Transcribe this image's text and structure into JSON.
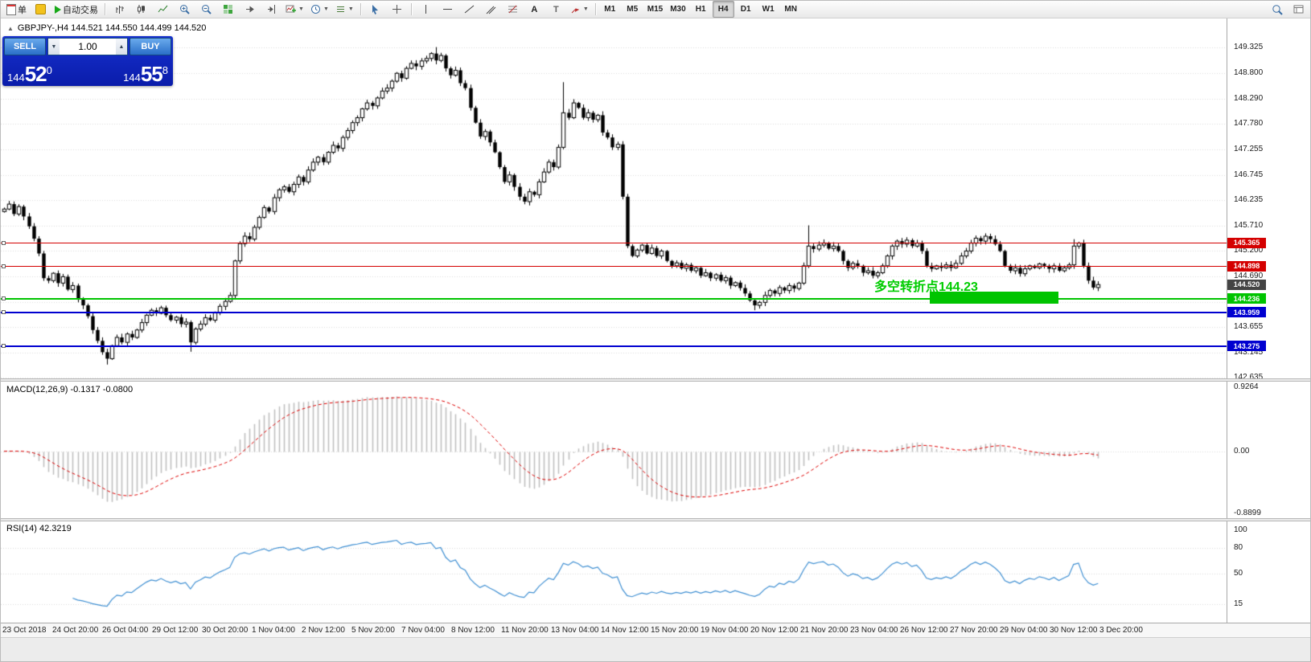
{
  "toolbar": {
    "order_label": "单",
    "autotrading_label": "自动交易",
    "text_tool_label": "A",
    "label_tool_label": "T",
    "timeframes": [
      "M1",
      "M5",
      "M15",
      "M30",
      "H1",
      "H4",
      "D1",
      "W1",
      "MN"
    ],
    "active_timeframe": "H4",
    "icons": [
      "new-order-icon",
      "metaeditor-icon",
      "autotrading-play-icon",
      "bar-chart-icon",
      "candlestick-chart-icon",
      "line-chart-icon",
      "zoom-in-icon",
      "zoom-out-icon",
      "tile-windows-icon",
      "new-chart-icon",
      "chart-profiles-icon",
      "indicator-list-icon",
      "cursor-icon",
      "crosshair-icon",
      "vertical-line-icon",
      "horizontal-line-icon",
      "trendline-icon",
      "equidistant-channel-icon",
      "fibonacci-icon",
      "text-icon",
      "text-label-icon",
      "arrow-shapes-icon",
      "search-icon",
      "data-window-icon"
    ]
  },
  "chart": {
    "info_line": "GBPJPY-,H4  144.521 144.550 144.499 144.520",
    "symbol": "GBPJPY-",
    "timeframe": "H4"
  },
  "trade_panel": {
    "sell_label": "SELL",
    "buy_label": "BUY",
    "lot_size": "1.00",
    "sell_price": {
      "prefix": "144",
      "big": "52",
      "sup": "0"
    },
    "buy_price": {
      "prefix": "144",
      "big": "55",
      "sup": "8"
    }
  },
  "indicators": {
    "macd": {
      "label": "MACD(12,26,9) -0.1317 -0.0800",
      "fast": 12,
      "slow": 26,
      "signal": 9,
      "axis_values": [
        0.9264,
        0,
        -0.8899
      ],
      "axis_labels": [
        "0.9264",
        "0.00",
        "-0.8899"
      ],
      "range": [
        -0.8899,
        0.9264
      ]
    },
    "rsi": {
      "label": "RSI(14) 42.3219",
      "period": 14,
      "axis_values": [
        100,
        80,
        50,
        15
      ],
      "axis_labels": [
        "100",
        "80",
        "50",
        "15"
      ],
      "levels": [
        80,
        50,
        15
      ],
      "range": [
        0,
        100
      ]
    }
  },
  "annotation": {
    "text": "多空转折点144.23",
    "color": "#00cc00",
    "rect_color": "#00c400"
  },
  "time_axis": {
    "labels": [
      "23 Oct 2018",
      "24 Oct 20:00",
      "26 Oct 04:00",
      "29 Oct 12:00",
      "30 Oct 20:00",
      "1 Nov 04:00",
      "2 Nov 12:00",
      "5 Nov 20:00",
      "7 Nov 04:00",
      "8 Nov 12:00",
      "11 Nov 20:00",
      "13 Nov 04:00",
      "14 Nov 12:00",
      "15 Nov 20:00",
      "19 Nov 04:00",
      "20 Nov 12:00",
      "21 Nov 20:00",
      "23 Nov 04:00",
      "26 Nov 12:00",
      "27 Nov 20:00",
      "29 Nov 04:00",
      "30 Nov 12:00",
      "3 Dec 20:00"
    ]
  },
  "chart_data": {
    "type": "candlestick",
    "title": "GBPJPY- H4",
    "y_range": [
      142.62,
      149.91
    ],
    "grid_prices": [
      149.325,
      148.8,
      148.29,
      147.78,
      147.255,
      146.745,
      146.235,
      145.71,
      145.2,
      144.69,
      144.17,
      143.655,
      143.145,
      142.635
    ],
    "current_price": 144.52,
    "hlines": [
      {
        "price": 145.365,
        "color": "#d40000",
        "width": 1
      },
      {
        "price": 144.898,
        "color": "#d40000",
        "width": 1
      },
      {
        "price": 144.236,
        "color": "#00c400",
        "width": 2
      },
      {
        "price": 143.959,
        "color": "#0000d0",
        "width": 2
      },
      {
        "price": 143.275,
        "color": "#0000d0",
        "width": 2
      }
    ],
    "closes": [
      146.05,
      146.15,
      145.95,
      146.1,
      145.9,
      145.7,
      145.45,
      145.15,
      144.65,
      144.6,
      144.75,
      144.55,
      144.68,
      144.42,
      144.5,
      144.22,
      144.1,
      143.88,
      143.6,
      143.38,
      143.15,
      143.02,
      143.28,
      143.45,
      143.35,
      143.52,
      143.45,
      143.6,
      143.75,
      143.9,
      144.0,
      143.94,
      144.05,
      143.9,
      143.8,
      143.86,
      143.72,
      143.76,
      143.35,
      143.62,
      143.72,
      143.85,
      143.8,
      143.95,
      144.08,
      144.18,
      144.3,
      145.0,
      145.35,
      145.5,
      145.44,
      145.68,
      145.88,
      146.08,
      146.0,
      146.28,
      146.44,
      146.5,
      146.4,
      146.55,
      146.7,
      146.6,
      146.84,
      147.0,
      147.1,
      147.0,
      147.2,
      147.34,
      147.28,
      147.5,
      147.64,
      147.8,
      147.9,
      148.08,
      148.2,
      148.14,
      148.3,
      148.44,
      148.5,
      148.64,
      148.8,
      148.7,
      148.9,
      149.0,
      148.94,
      149.05,
      149.1,
      149.2,
      149.06,
      149.16,
      148.9,
      148.76,
      148.86,
      148.6,
      148.5,
      148.1,
      147.8,
      147.52,
      147.62,
      147.4,
      147.2,
      146.9,
      146.6,
      146.74,
      146.5,
      146.3,
      146.2,
      146.4,
      146.34,
      146.6,
      146.8,
      147.0,
      146.9,
      147.3,
      148.0,
      147.9,
      148.2,
      148.1,
      147.9,
      148.0,
      147.86,
      147.95,
      147.6,
      147.5,
      147.3,
      147.36,
      146.3,
      145.3,
      145.1,
      145.22,
      145.32,
      145.15,
      145.26,
      145.1,
      145.2,
      145.0,
      144.9,
      144.96,
      144.85,
      144.92,
      144.8,
      144.86,
      144.7,
      144.76,
      144.65,
      144.72,
      144.6,
      144.66,
      144.5,
      144.56,
      144.45,
      144.34,
      144.2,
      144.1,
      144.16,
      144.3,
      144.4,
      144.34,
      144.46,
      144.4,
      144.5,
      144.44,
      144.55,
      144.9,
      145.3,
      145.24,
      145.32,
      145.36,
      145.25,
      145.3,
      145.2,
      145.0,
      144.86,
      144.95,
      144.9,
      144.76,
      144.8,
      144.7,
      144.76,
      144.9,
      145.1,
      145.3,
      145.4,
      145.34,
      145.42,
      145.3,
      145.36,
      145.2,
      144.9,
      144.84,
      144.9,
      144.86,
      144.92,
      144.86,
      144.95,
      145.1,
      145.2,
      145.36,
      145.46,
      145.4,
      145.5,
      145.44,
      145.34,
      145.2,
      144.9,
      144.8,
      144.86,
      144.74,
      144.84,
      144.9,
      144.86,
      144.94,
      144.9,
      144.84,
      144.9,
      144.8,
      144.86,
      144.92,
      145.3,
      145.36,
      144.9,
      144.6,
      144.46,
      144.52
    ],
    "spikes": {
      "21": {
        "low": 142.9
      },
      "38": {
        "low": 143.16
      },
      "88": {
        "high": 149.33
      },
      "114": {
        "high": 148.62
      },
      "153": {
        "low": 144.0
      },
      "164": {
        "high": 145.72
      },
      "218": {
        "high": 145.44
      }
    }
  }
}
